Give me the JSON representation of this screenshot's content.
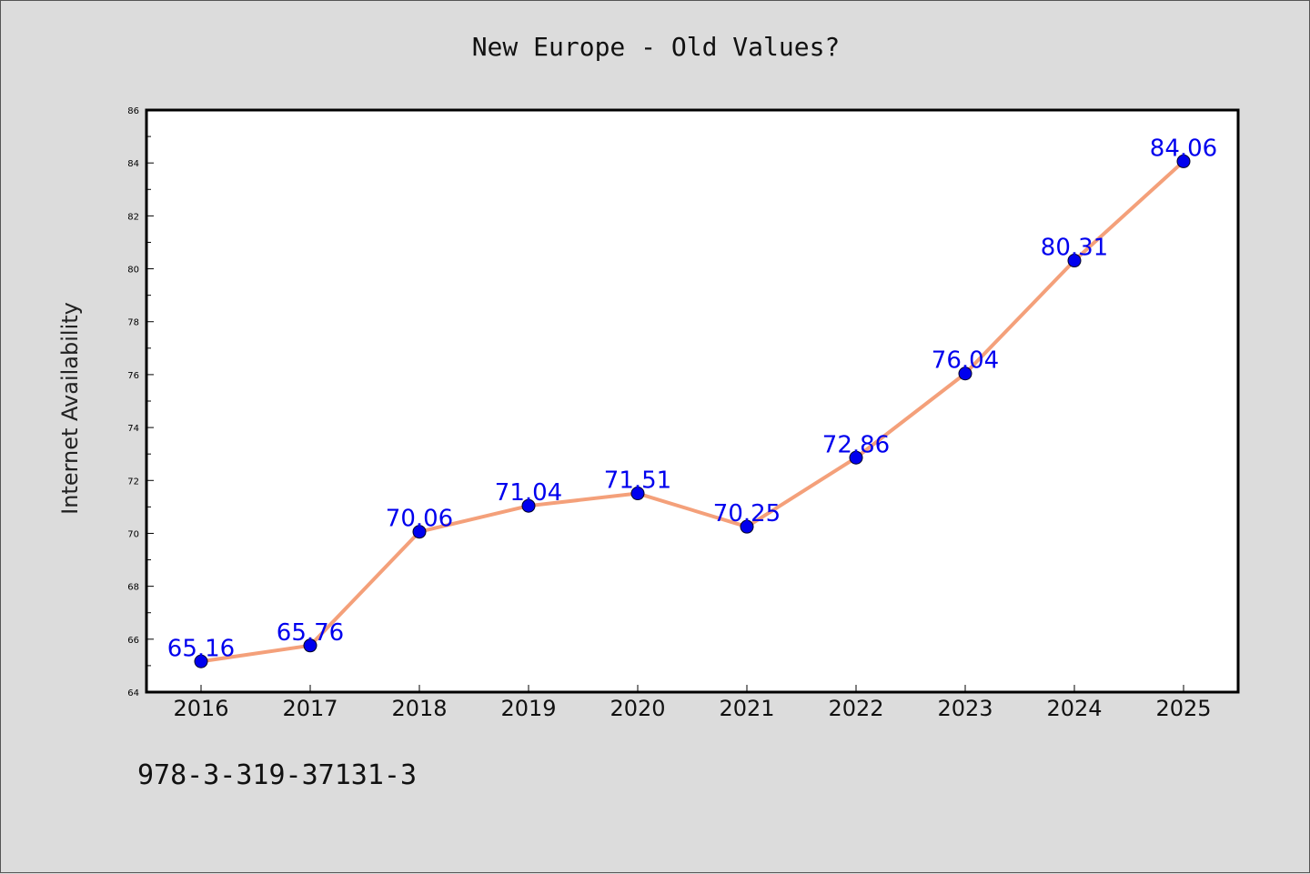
{
  "chart_data": {
    "type": "line",
    "title": "New Europe - Old Values?",
    "ylabel": "Internet Availability",
    "xlabel": "",
    "categories": [
      "2016",
      "2017",
      "2018",
      "2019",
      "2020",
      "2021",
      "2022",
      "2023",
      "2024",
      "2025"
    ],
    "series": [
      {
        "values": [
          65.16,
          65.76,
          70.06,
          71.04,
          71.51,
          70.25,
          72.86,
          76.04,
          80.31,
          84.06
        ],
        "line_color": "#f4a07a",
        "marker_color": "#0000ee"
      }
    ],
    "ylim": [
      64,
      86
    ],
    "y_ticks": [
      64,
      66,
      68,
      70,
      72,
      74,
      76,
      78,
      80,
      82,
      84,
      86
    ],
    "grid": false,
    "data_labels": true
  },
  "footer": {
    "isbn": "978-3-319-37131-3"
  }
}
